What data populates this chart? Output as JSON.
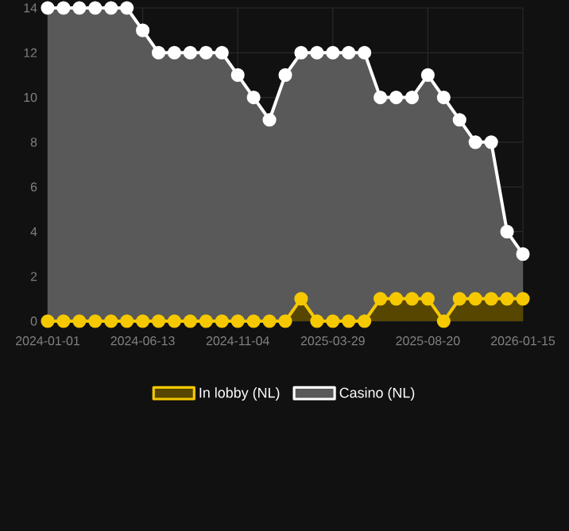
{
  "chart_data": {
    "type": "area",
    "categories": [
      "2024-01-01",
      null,
      null,
      null,
      null,
      null,
      "2024-06-13",
      null,
      null,
      null,
      null,
      null,
      "2024-11-04",
      null,
      null,
      null,
      null,
      null,
      "2025-03-29",
      null,
      null,
      null,
      null,
      null,
      "2025-08-20",
      null,
      null,
      null,
      null,
      null,
      "2026-01-15"
    ],
    "series": [
      {
        "name": "In lobby (NL)",
        "color": "#f5c800",
        "values": [
          0,
          0,
          0,
          0,
          0,
          0,
          0,
          0,
          0,
          0,
          0,
          0,
          0,
          0,
          0,
          0,
          1,
          0,
          0,
          0,
          0,
          1,
          1,
          1,
          1,
          0,
          1,
          1,
          1,
          1,
          1
        ]
      },
      {
        "name": "Casino (NL)",
        "color": "#ffffff",
        "values": [
          14,
          14,
          14,
          14,
          14,
          14,
          13,
          12,
          12,
          12,
          12,
          12,
          11,
          10,
          9,
          11,
          12,
          12,
          12,
          12,
          12,
          10,
          10,
          10,
          11,
          10,
          9,
          8,
          8,
          4,
          3
        ]
      }
    ],
    "ylim": [
      0,
      14
    ],
    "yticks": [
      0,
      2,
      4,
      6,
      8,
      10,
      12,
      14
    ],
    "grid": true,
    "legend": "bottom",
    "marker": "circle"
  }
}
